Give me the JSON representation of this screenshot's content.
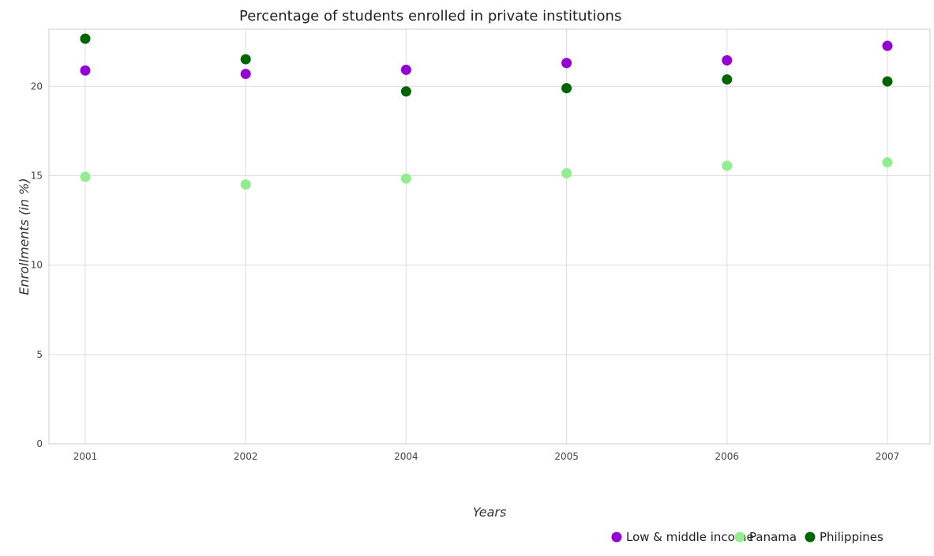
{
  "chart_data": {
    "type": "scatter",
    "title": "Percentage of students enrolled in private institutions",
    "xlabel": "Years",
    "ylabel": "Enrollments (in %)",
    "categories": [
      "2001",
      "2002",
      "2004",
      "2005",
      "2006",
      "2007"
    ],
    "ylim": [
      0,
      23.2
    ],
    "yticks": [
      0,
      5,
      10,
      15,
      20
    ],
    "grid": true,
    "legend_position": "bottom-right",
    "series": [
      {
        "name": "Low & middle income",
        "color": "#9400d3",
        "values": [
          20.89,
          20.7,
          20.93,
          21.31,
          21.46,
          22.27
        ]
      },
      {
        "name": "Panama",
        "color": "#90ee90",
        "values": [
          14.94,
          14.51,
          14.84,
          15.14,
          15.56,
          15.75
        ]
      },
      {
        "name": "Philippines",
        "color": "#006400",
        "values": [
          22.67,
          21.52,
          19.72,
          19.9,
          20.39,
          20.28
        ]
      }
    ]
  }
}
